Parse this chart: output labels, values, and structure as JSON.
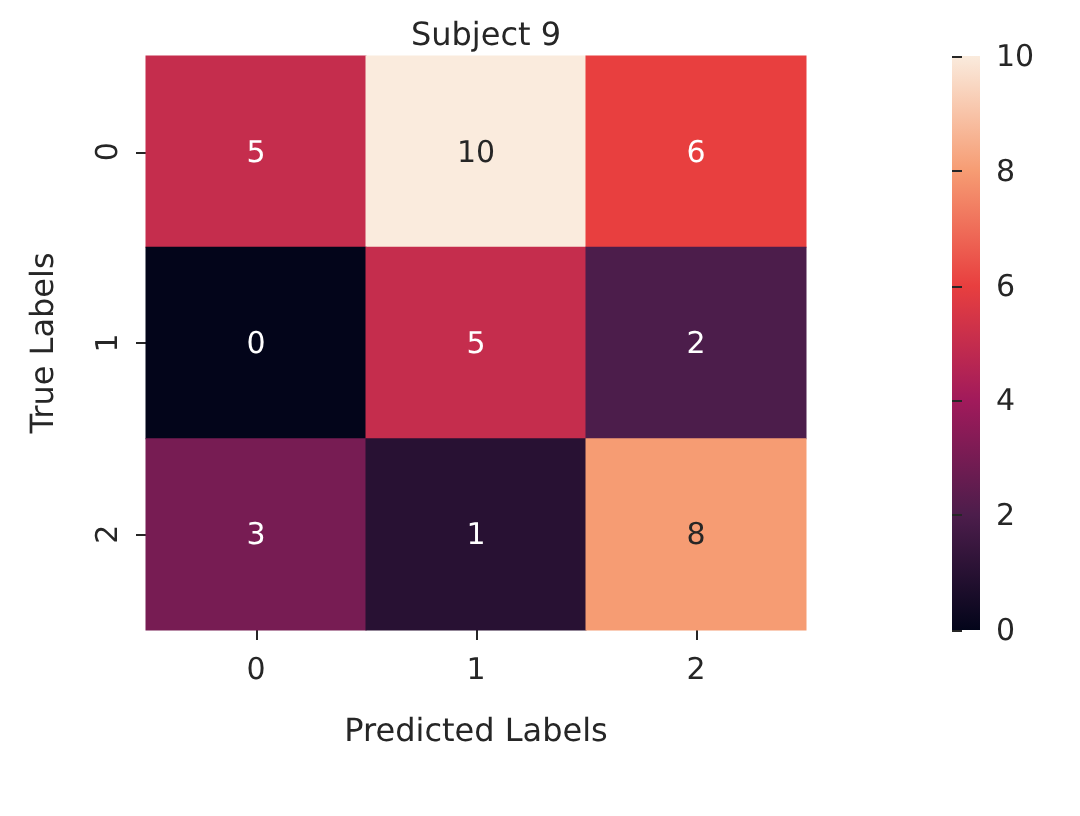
{
  "chart_data": {
    "type": "heatmap",
    "title": "Subject 9",
    "xlabel": "Predicted Labels",
    "ylabel": "True Labels",
    "categories": [
      "0",
      "1",
      "2"
    ],
    "y_categories": [
      "0",
      "1",
      "2"
    ],
    "cells": [
      [
        5,
        10,
        6
      ],
      [
        0,
        5,
        2
      ],
      [
        3,
        1,
        8
      ]
    ],
    "data_labels": true,
    "clim": [
      0,
      10
    ],
    "cticks": [
      0,
      2,
      4,
      6,
      8,
      10
    ]
  }
}
